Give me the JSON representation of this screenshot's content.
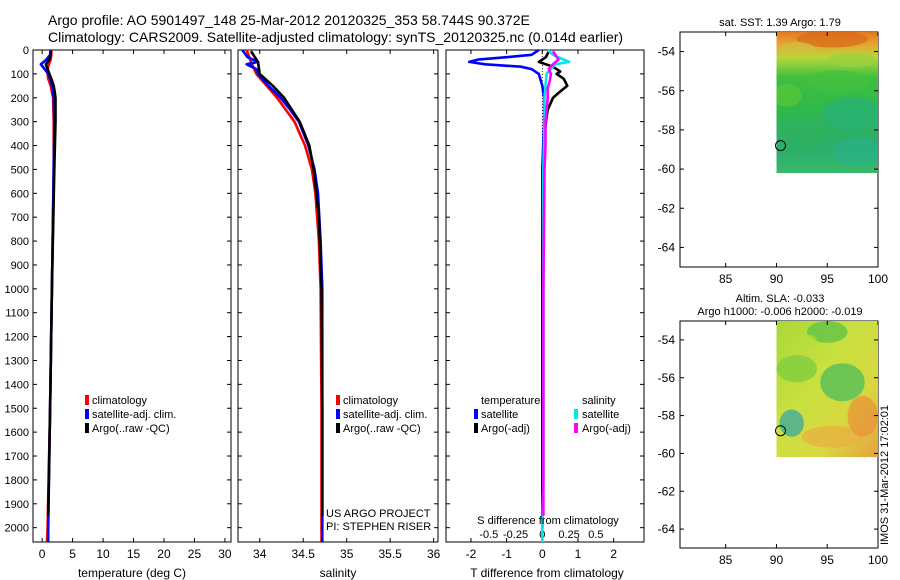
{
  "header": {
    "line1": "Argo profile: AO 5901497_148 25-Mar-2012 20120325_353 58.744S 90.372E",
    "line2": "Climatology: CARS2009. Satellite-adjusted climatology: synTS_20120325.nc (0.014d earlier)"
  },
  "colors": {
    "climatology": "#ff0000",
    "satellite": "#0000ff",
    "argo": "#000000",
    "sal_satellite": "#00e5ee",
    "sal_argo": "#ff00ff"
  },
  "chart_data": [
    {
      "id": "temperature",
      "type": "line",
      "xlabel": "temperature (deg C)",
      "xlim": [
        -1.5,
        31
      ],
      "xticks": [
        0,
        5,
        10,
        15,
        20,
        25,
        30
      ],
      "ylim": [
        2060,
        0
      ],
      "yticks": [
        0,
        100,
        200,
        300,
        400,
        500,
        600,
        700,
        800,
        900,
        1000,
        1100,
        1200,
        1300,
        1400,
        1500,
        1600,
        1700,
        1800,
        1900,
        2000
      ],
      "legend": [
        "climatology",
        "satellite-adj. clim.",
        "Argo(..raw -QC)"
      ],
      "series": [
        {
          "name": "climatology",
          "color": "#ff0000",
          "depth": [
            0,
            20,
            40,
            60,
            80,
            100,
            120,
            150,
            200,
            300,
            500,
            1000,
            1500,
            2000,
            2060
          ],
          "value": [
            1.5,
            1.5,
            1.4,
            1.1,
            0.9,
            0.9,
            1.0,
            1.4,
            1.8,
            1.9,
            1.9,
            1.6,
            1.3,
            0.9,
            0.8
          ]
        },
        {
          "name": "satellite-adj. clim.",
          "color": "#0000ff",
          "depth": [
            0,
            20,
            40,
            60,
            80,
            100,
            120,
            150,
            200,
            300,
            500,
            1000,
            1500,
            2000,
            2060
          ],
          "value": [
            1.4,
            1.3,
            0.7,
            -0.2,
            0.4,
            1.0,
            1.3,
            1.6,
            1.9,
            2.0,
            1.9,
            1.6,
            1.3,
            1.0,
            1.0
          ]
        },
        {
          "name": "Argo(..raw -QC)",
          "color": "#000000",
          "depth": [
            5,
            20,
            40,
            60,
            80,
            100,
            120,
            150,
            180,
            200,
            300,
            400,
            500,
            1000,
            1500,
            1950
          ],
          "value": [
            1.4,
            1.4,
            1.2,
            0.6,
            0.9,
            1.2,
            1.5,
            1.9,
            2.1,
            2.2,
            2.2,
            2.1,
            2.0,
            1.6,
            1.3,
            1.0
          ]
        }
      ]
    },
    {
      "id": "salinity",
      "type": "line",
      "xlabel": "salinity",
      "xlim": [
        33.75,
        36.05
      ],
      "xticks": [
        34,
        34.5,
        35,
        35.5,
        36
      ],
      "xticklabels": [
        "34",
        "34.5",
        "35",
        "35.5",
        "36"
      ],
      "ylim": [
        2060,
        0
      ],
      "legend": [
        "climatology",
        "satellite-adj. clim.",
        "Argo(..raw -QC)"
      ],
      "annotation": [
        "US ARGO PROJECT",
        "PI: STEPHEN RISER"
      ],
      "series": [
        {
          "name": "climatology",
          "color": "#ff0000",
          "depth": [
            0,
            50,
            100,
            150,
            200,
            250,
            300,
            400,
            500,
            600,
            800,
            1000,
            1500,
            2000,
            2060
          ],
          "value": [
            33.85,
            33.9,
            33.96,
            34.08,
            34.2,
            34.3,
            34.4,
            34.52,
            34.6,
            34.64,
            34.68,
            34.7,
            34.71,
            34.71,
            34.71
          ]
        },
        {
          "name": "satellite-adj. clim.",
          "color": "#0000ff",
          "depth": [
            0,
            30,
            50,
            60,
            80,
            100,
            150,
            200,
            250,
            300,
            400,
            500,
            600,
            800,
            1000,
            1500,
            2000,
            2060
          ],
          "value": [
            33.8,
            33.86,
            33.98,
            33.85,
            33.96,
            33.98,
            34.1,
            34.24,
            34.35,
            34.45,
            34.56,
            34.63,
            34.67,
            34.7,
            34.72,
            34.72,
            34.72,
            34.72
          ]
        },
        {
          "name": "Argo(..raw -QC)",
          "color": "#000000",
          "depth": [
            5,
            50,
            100,
            150,
            200,
            300,
            400,
            500,
            700,
            1000,
            1500,
            1950
          ],
          "value": [
            33.9,
            33.98,
            34.0,
            34.15,
            34.28,
            34.46,
            34.57,
            34.62,
            34.68,
            34.71,
            34.72,
            34.72
          ]
        }
      ]
    },
    {
      "id": "difference",
      "type": "line",
      "xlabel": "T difference from climatology",
      "xlim": [
        -2.7,
        2.85
      ],
      "xticks": [
        -2,
        -1,
        0,
        1,
        2
      ],
      "top_axis_label": "S difference from climatology",
      "sxticks": [
        -0.5,
        -0.25,
        0,
        0.25,
        0.5
      ],
      "sxticklabels": [
        "-0.5",
        "-0.25",
        "0",
        "0.25",
        "0.5"
      ],
      "ylim": [
        2060,
        0
      ],
      "legend_temperature": [
        "temperature",
        "satellite",
        "Argo(-adj)"
      ],
      "legend_salinity": [
        "salinity",
        "satellite",
        "Argo(-adj)"
      ],
      "series": [
        {
          "name": "temperature satellite",
          "color": "#0000ff",
          "depth": [
            0,
            20,
            30,
            40,
            50,
            60,
            70,
            80,
            100,
            150,
            200,
            300,
            500,
            1000,
            1500,
            2000
          ],
          "value": [
            -0.1,
            -0.3,
            -1.0,
            -1.8,
            -2.05,
            -1.6,
            -0.6,
            -0.3,
            -0.1,
            0.0,
            0.05,
            0.05,
            0.0,
            0.0,
            0.0,
            0.0
          ]
        },
        {
          "name": "temperature Argo(-adj)",
          "color": "#000000",
          "depth": [
            0,
            30,
            50,
            70,
            90,
            100,
            120,
            150,
            180,
            200,
            250,
            300,
            400,
            500,
            1000,
            1500,
            2000
          ],
          "value": [
            0.2,
            0.1,
            -0.1,
            0.3,
            0.5,
            0.4,
            0.6,
            0.7,
            0.45,
            0.3,
            0.15,
            0.1,
            0.05,
            0.05,
            0.0,
            0.0,
            0.0
          ]
        },
        {
          "name": "salinity satellite",
          "color": "#00e5ee",
          "depth": [
            0,
            20,
            40,
            50,
            60,
            80,
            100,
            150,
            200,
            300,
            500,
            1000,
            1500,
            1800,
            2000,
            2060
          ],
          "value": [
            0.05,
            0.1,
            0.2,
            0.25,
            0.12,
            0.08,
            0.04,
            0.03,
            0.02,
            0.02,
            0.01,
            0.01,
            0.01,
            0.01,
            0.0,
            0.0
          ]
        },
        {
          "name": "salinity Argo(-adj)",
          "color": "#ff00ff",
          "depth": [
            5,
            40,
            60,
            80,
            100,
            130,
            160,
            200,
            250,
            300,
            400,
            500,
            1000,
            1500,
            1950
          ],
          "value": [
            0.1,
            0.15,
            0.1,
            0.06,
            0.08,
            0.07,
            0.05,
            0.05,
            0.04,
            0.03,
            0.03,
            0.02,
            0.01,
            0.01,
            0.01
          ]
        }
      ]
    },
    {
      "id": "sst_map",
      "type": "heatmap",
      "title": "sat. SST: 1.39 Argo: 1.79",
      "xlim": [
        80.5,
        100
      ],
      "ylim": [
        -65,
        -53
      ],
      "xticks": [
        85,
        90,
        95,
        100
      ],
      "yticks": [
        -54,
        -56,
        -58,
        -60,
        -62,
        -64
      ],
      "yticklabels": [
        "-54",
        "-56",
        "-58",
        "-60",
        "-62",
        "-64"
      ],
      "data_extent": {
        "lon": [
          90,
          100
        ],
        "lat": [
          -60.2,
          -53
        ]
      },
      "marker": {
        "lon": 90.4,
        "lat": -58.8
      }
    },
    {
      "id": "sla_map",
      "type": "heatmap",
      "title": [
        "Altim. SLA: -0.033",
        "Argo h1000: -0.006 h2000: -0.019"
      ],
      "xlim": [
        80.5,
        100
      ],
      "ylim": [
        -65,
        -53
      ],
      "xticks": [
        85,
        90,
        95,
        100
      ],
      "yticks": [
        -54,
        -56,
        -58,
        -60,
        -62,
        -64
      ],
      "yticklabels": [
        "-54",
        "-56",
        "-58",
        "-60",
        "-62",
        "-64"
      ],
      "data_extent": {
        "lon": [
          90,
          100
        ],
        "lat": [
          -60.2,
          -53
        ]
      },
      "marker": {
        "lon": 90.4,
        "lat": -58.8
      }
    }
  ],
  "footer_stamp": "IMOS 31-Mar-2012 17:02:01"
}
